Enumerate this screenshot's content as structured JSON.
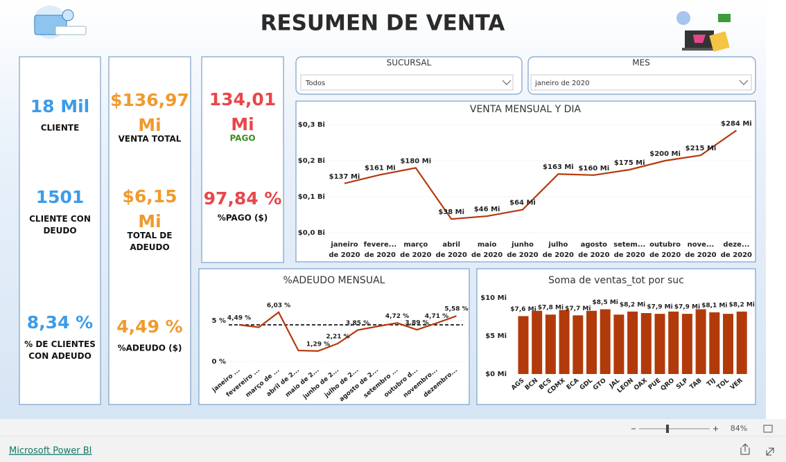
{
  "header": {
    "title": "RESUMEN DE VENTA"
  },
  "kpi_cards": [
    {
      "items": [
        {
          "value": "18 Mil",
          "label": "CLIENTE",
          "color": "#3d9be9"
        },
        {
          "value": "1501",
          "label": "CLIENTE  CON DEUDO",
          "color": "#3d9be9"
        },
        {
          "value": "8,34 %",
          "label": "% DE CLIENTES CON ADEUDO",
          "color": "#3d9be9"
        }
      ]
    },
    {
      "items": [
        {
          "value": "$136,97 Mi",
          "label": "VENTA TOTAL",
          "color": "#f09a2c"
        },
        {
          "value": "$6,15 Mi",
          "label": "TOTAL DE ADEUDO",
          "color": "#f09a2c"
        },
        {
          "value": "4,49 %",
          "label": "%ADEUDO ($)",
          "color": "#f09a2c"
        }
      ]
    },
    {
      "items": [
        {
          "value": "134,01 Mi",
          "label": "PAGO",
          "color": "#e8474a",
          "label_color": "#3f8a22"
        },
        {
          "value": "97,84 %",
          "label": "%PAGO ($)",
          "color": "#e8474a"
        }
      ]
    }
  ],
  "filters": [
    {
      "title": "SUCURSAL",
      "selected": "Todos"
    },
    {
      "title": "MES",
      "selected": "janeiro de 2020"
    }
  ],
  "footer": {
    "brand": "Microsoft Power BI",
    "zoom": "84%"
  },
  "chart_data": [
    {
      "type": "line",
      "title": "VENTA MENSUAL Y DIA",
      "color": "#b5380c",
      "grid": true,
      "categories": [
        "janeiro de 2020",
        "fevere... de 2020",
        "março de 2020",
        "abril de 2020",
        "maio de 2020",
        "junho de 2020",
        "julho de 2020",
        "agosto de 2020",
        "setem... de 2020",
        "outubro de 2020",
        "nove... de 2020",
        "deze... de 2020"
      ],
      "values": [
        0.137,
        0.161,
        0.18,
        0.038,
        0.046,
        0.064,
        0.163,
        0.16,
        0.175,
        0.2,
        0.215,
        0.284
      ],
      "value_labels": [
        "$137 Mi",
        "$161 Mi",
        "$180 Mi",
        "$38 Mi",
        "$46 Mi",
        "$64 Mi",
        "$163 Mi",
        "$160 Mi",
        "$175 Mi",
        "$200 Mi",
        "$215 Mi",
        "$284 Mi"
      ],
      "ylim": [
        0,
        0.3
      ],
      "yticks": [
        {
          "value": 0,
          "label": "$0,0 Bi"
        },
        {
          "value": 0.1,
          "label": "$0,1 Bi"
        },
        {
          "value": 0.2,
          "label": "$0,2 Bi"
        },
        {
          "value": 0.3,
          "label": "$0,3 Bi"
        }
      ]
    },
    {
      "type": "line",
      "title": "%ADEUDO MENSUAL",
      "color": "#b5380c",
      "grid": true,
      "categories": [
        "janeiro ...",
        "fevereiro ...",
        "março de ...",
        "abril de 2...",
        "maio de 2...",
        "junho de 2...",
        "julho de 2...",
        "agosto de 2...",
        "setembro ...",
        "outubro d...",
        "novembro...",
        "dezembro..."
      ],
      "values": [
        4.49,
        4.2,
        6.03,
        1.35,
        1.29,
        2.21,
        3.85,
        4.3,
        4.72,
        3.89,
        4.71,
        5.58
      ],
      "value_labels": [
        "4,49 %",
        null,
        "6,03 %",
        null,
        "1,29 %",
        "2,21 %",
        "3,85 %",
        null,
        "4,72 %",
        "3,89 %",
        "4,71 %",
        "5,58 %"
      ],
      "reference_line": 4.49,
      "reference_color": "#333333",
      "ylim": [
        0,
        7
      ],
      "yticks": [
        {
          "value": 0,
          "label": "0 %"
        },
        {
          "value": 5,
          "label": "5 %"
        }
      ]
    },
    {
      "type": "bar",
      "title": "Soma de ventas_tot por suc",
      "color": "#b23a0a",
      "grid": false,
      "categories": [
        "AGS",
        "BCN",
        "BCS",
        "CDMX",
        "ECA",
        "GDL",
        "GTO",
        "JAL",
        "LEON",
        "OAX",
        "PUE",
        "QRO",
        "SLP",
        "TAB",
        "TIJ",
        "TOL",
        "VER"
      ],
      "values": [
        7.6,
        8.3,
        7.8,
        8.4,
        7.7,
        8.3,
        8.5,
        7.8,
        8.2,
        8.0,
        7.9,
        8.2,
        7.9,
        8.5,
        8.1,
        7.9,
        8.2
      ],
      "value_labels": [
        "$7,6 Mi",
        null,
        "$7,8 Mi",
        null,
        "$7,7 Mi",
        null,
        "$8,5 Mi",
        null,
        "$8,2 Mi",
        null,
        "$7,9 Mi",
        null,
        "$7,9 Mi",
        null,
        "$8,1 Mi",
        null,
        "$8,2 Mi"
      ],
      "ylim": [
        0,
        10
      ],
      "yticks": [
        {
          "value": 0,
          "label": "$0 Mi"
        },
        {
          "value": 5,
          "label": "$5 Mi"
        },
        {
          "value": 10,
          "label": "$10 Mi"
        }
      ]
    }
  ]
}
